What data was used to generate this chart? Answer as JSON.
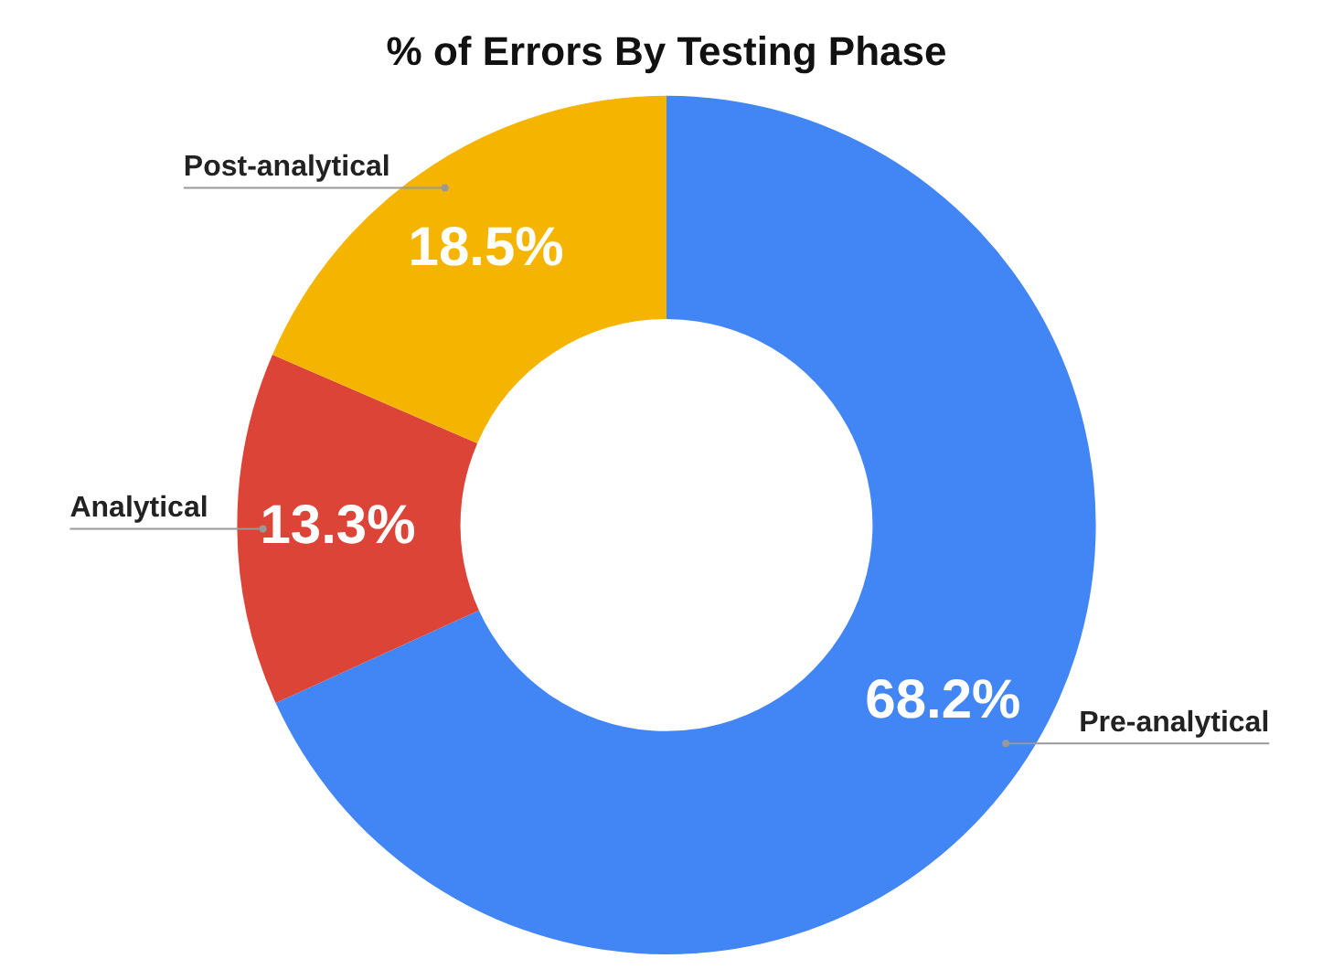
{
  "chart_data": {
    "type": "donut",
    "title": "% of Errors By Testing Phase",
    "categories": [
      "Pre-analytical",
      "Analytical",
      "Post-analytical"
    ],
    "values": [
      68.2,
      13.3,
      18.5
    ],
    "colors": [
      "#4285f4",
      "#db4437",
      "#f4b400"
    ],
    "value_labels": [
      "68.2%",
      "13.3%",
      "18.5%"
    ],
    "legend": false
  }
}
